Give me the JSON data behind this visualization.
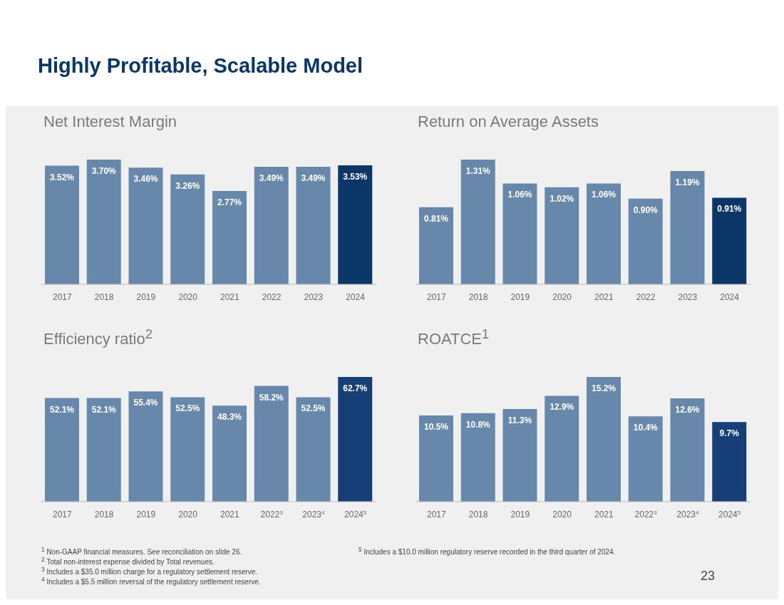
{
  "chart_data": [
    {
      "type": "bar",
      "title": "Net Interest Margin",
      "categories": [
        "2017",
        "2018",
        "2019",
        "2020",
        "2021",
        "2022",
        "2023",
        "2024"
      ],
      "values": [
        3.52,
        3.7,
        3.46,
        3.26,
        2.77,
        3.49,
        3.49,
        3.53
      ],
      "value_labels": [
        "3.52%",
        "3.70%",
        "3.46%",
        "3.26%",
        "2.77%",
        "3.49%",
        "3.49%",
        "3.53%"
      ],
      "colors": [
        "#6788ab",
        "#6788ab",
        "#6788ab",
        "#6788ab",
        "#6788ab",
        "#6788ab",
        "#6788ab",
        "#0b3768"
      ],
      "annotations": [
        "Highly Profitable, Scalable Model"
      ]
    },
    {
      "type": "bar",
      "title": "Return on Average Assets",
      "categories": [
        "2017",
        "2018",
        "2019",
        "2020",
        "2021",
        "2022",
        "2023",
        "2024"
      ],
      "values": [
        0.81,
        1.31,
        1.06,
        1.02,
        1.06,
        0.9,
        1.19,
        0.91
      ],
      "value_labels": [
        "0.81%",
        "1.31%",
        "1.06%",
        "1.02%",
        "1.06%",
        "0.90%",
        "1.19%",
        "0.91%"
      ],
      "colors": [
        "#6788ab",
        "#6788ab",
        "#6788ab",
        "#6788ab",
        "#6788ab",
        "#6788ab",
        "#6788ab",
        "#0b3768"
      ]
    },
    {
      "type": "bar",
      "title": "Efficiency ratio$^{2}$",
      "categories": [
        "2017",
        "2018",
        "2019",
        "2020",
        "2021",
        "2022$^{3}$",
        "2023$^{4}$",
        "2024$^{5}$"
      ],
      "values": [
        52.1,
        52.1,
        55.4,
        52.5,
        48.3,
        58.2,
        52.5,
        62.7
      ],
      "value_labels": [
        "52.1%",
        "52.1%",
        "55.4%",
        "52.5%",
        "48.3%",
        "58.2%",
        "52.5%",
        "62.7%"
      ],
      "colors": [
        "#6788ab",
        "#6788ab",
        "#6788ab",
        "#6788ab",
        "#6788ab",
        "#6788ab",
        "#6788ab",
        "#163f78"
      ],
      "annotations": [
        "$^{1}$ Non-GAAP financial measures. See reconciliation on slide 26.",
        "$^{2}$ Total non-interest expense divided by Total revenues.",
        "$^{3}$ Includes a $35.0 million charge for a regulatory settlement reserve.",
        "$^{4}$ Includes a $5.5 million reversal of the regulatory settlement reserve."
      ]
    },
    {
      "type": "bar",
      "title": "ROATCE$^{1}$",
      "categories": [
        "2017",
        "2018",
        "2019",
        "2020",
        "2021",
        "2022$^{3}$",
        "2023$^{4}$",
        "2024$^{5}$"
      ],
      "values": [
        10.5,
        10.8,
        11.3,
        12.9,
        15.2,
        10.4,
        12.6,
        9.7
      ],
      "value_labels": [
        "10.5%",
        "10.8%",
        "11.3%",
        "12.9%",
        "15.2%",
        "10.4%",
        "12.6%",
        "9.7%"
      ],
      "colors": [
        "#6788ab",
        "#6788ab",
        "#6788ab",
        "#6788ab",
        "#6788ab",
        "#6788ab",
        "#6788ab",
        "#163f78"
      ],
      "annotations": [
        "$^{5}$ Includes a $10.0 million regulatory reserve recorded in the third quarter of 2024.",
        "23"
      ]
    }
  ]
}
